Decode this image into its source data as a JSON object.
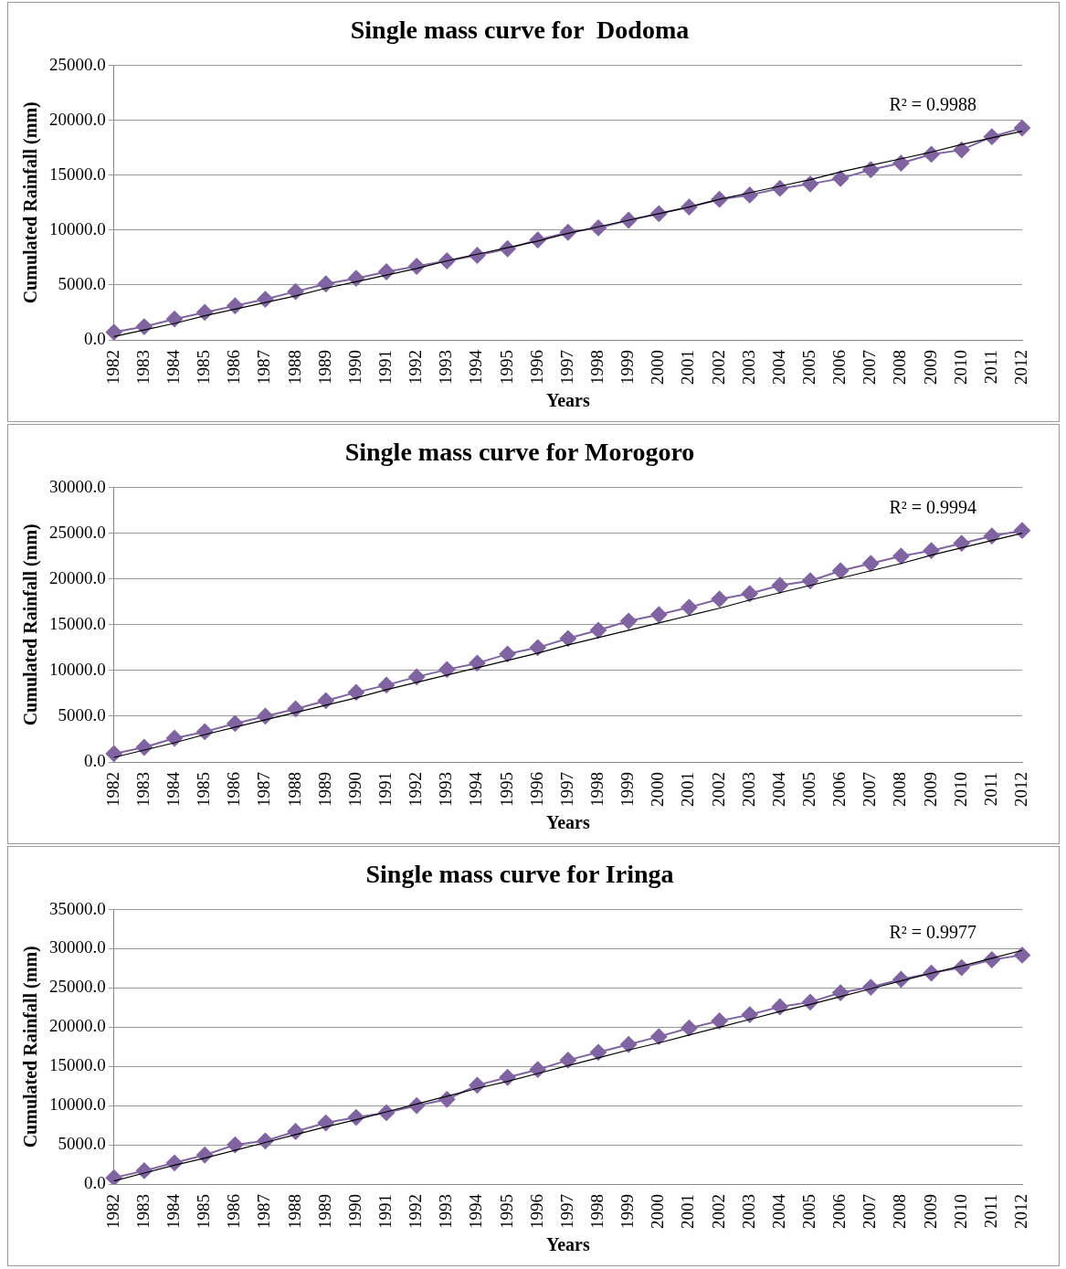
{
  "chart_data": [
    {
      "type": "line",
      "title": "Single mass curve for  Dodoma",
      "xlabel": "Years",
      "ylabel": "Cumulated Rainfall (mm)",
      "categories": [
        "1982",
        "1983",
        "1984",
        "1985",
        "1986",
        "1987",
        "1988",
        "1989",
        "1990",
        "1991",
        "1992",
        "1993",
        "1994",
        "1995",
        "1996",
        "1997",
        "1998",
        "1999",
        "2000",
        "2001",
        "2002",
        "2003",
        "2004",
        "2005",
        "2006",
        "2007",
        "2008",
        "2009",
        "2010",
        "2011",
        "2012"
      ],
      "series": [
        {
          "type": "line",
          "color": "#8064a2",
          "marker": "diamond",
          "values": [
            700,
            1200,
            1900,
            2500,
            3100,
            3700,
            4400,
            5100,
            5600,
            6200,
            6700,
            7200,
            7700,
            8300,
            9100,
            9800,
            10200,
            10900,
            11500,
            12100,
            12800,
            13200,
            13800,
            14200,
            14700,
            15500,
            16100,
            16900,
            17300,
            18500,
            19300
          ]
        },
        {
          "type": "line",
          "color": "#000000",
          "marker": "none",
          "values": [
            300,
            900,
            1500,
            2200,
            2800,
            3400,
            4000,
            4700,
            5300,
            5900,
            6500,
            7200,
            7800,
            8400,
            9000,
            9700,
            10300,
            10900,
            11500,
            12100,
            12800,
            13400,
            14000,
            14600,
            15300,
            15900,
            16500,
            17100,
            17800,
            18400,
            19000
          ]
        }
      ],
      "ylim": [
        0,
        25000
      ],
      "yticks": [
        {
          "value": 0,
          "label": "0.0"
        },
        {
          "value": 5000,
          "label": "5000.0"
        },
        {
          "value": 10000,
          "label": "10000.0"
        },
        {
          "value": 15000,
          "label": "15000.0"
        },
        {
          "value": 20000,
          "label": "20000.0"
        },
        {
          "value": 25000,
          "label": "25000.0"
        }
      ],
      "grid": "y",
      "legend": false,
      "annotations": [
        "R² = 0.9988"
      ]
    },
    {
      "type": "line",
      "title": "Single mass curve for Morogoro",
      "xlabel": "Years",
      "ylabel": "Cumulated Rainfall (mm)",
      "categories": [
        "1982",
        "1983",
        "1984",
        "1985",
        "1986",
        "1987",
        "1988",
        "1989",
        "1990",
        "1991",
        "1992",
        "1993",
        "1994",
        "1995",
        "1996",
        "1997",
        "1998",
        "1999",
        "2000",
        "2001",
        "2002",
        "2003",
        "2004",
        "2005",
        "2006",
        "2007",
        "2008",
        "2009",
        "2010",
        "2011",
        "2012"
      ],
      "series": [
        {
          "type": "line",
          "color": "#8064a2",
          "marker": "diamond",
          "values": [
            900,
            1600,
            2600,
            3300,
            4200,
            5000,
            5800,
            6700,
            7600,
            8400,
            9300,
            10100,
            10800,
            11800,
            12500,
            13500,
            14400,
            15400,
            16100,
            16900,
            17800,
            18400,
            19300,
            19800,
            20900,
            21700,
            22500,
            23100,
            23900,
            24700,
            25300
          ]
        },
        {
          "type": "line",
          "color": "#000000",
          "marker": "none",
          "values": [
            500,
            1300,
            2100,
            3000,
            3800,
            4600,
            5400,
            6200,
            7000,
            7900,
            8700,
            9500,
            10300,
            11100,
            11900,
            12800,
            13600,
            14400,
            15200,
            16000,
            16800,
            17700,
            18500,
            19300,
            20100,
            20900,
            21700,
            22600,
            23400,
            24200,
            25000
          ]
        }
      ],
      "ylim": [
        0,
        30000
      ],
      "yticks": [
        {
          "value": 0,
          "label": "0.0"
        },
        {
          "value": 5000,
          "label": "5000.0"
        },
        {
          "value": 10000,
          "label": "10000.0"
        },
        {
          "value": 15000,
          "label": "15000.0"
        },
        {
          "value": 20000,
          "label": "20000.0"
        },
        {
          "value": 25000,
          "label": "25000.0"
        },
        {
          "value": 30000,
          "label": "30000.0"
        }
      ],
      "grid": "y",
      "legend": false,
      "annotations": [
        "R² = 0.9994"
      ]
    },
    {
      "type": "line",
      "title": "Single mass curve for Iringa",
      "xlabel": "Years",
      "ylabel": "Cumulated Rainfall (mm)",
      "categories": [
        "1982",
        "1983",
        "1984",
        "1985",
        "1986",
        "1987",
        "1988",
        "1989",
        "1990",
        "1991",
        "1992",
        "1993",
        "1994",
        "1995",
        "1996",
        "1997",
        "1998",
        "1999",
        "2000",
        "2001",
        "2002",
        "2003",
        "2004",
        "2005",
        "2006",
        "2007",
        "2008",
        "2009",
        "2010",
        "2011",
        "2012"
      ],
      "series": [
        {
          "type": "line",
          "color": "#8064a2",
          "marker": "diamond",
          "values": [
            800,
            1700,
            2700,
            3700,
            5000,
            5500,
            6700,
            7800,
            8500,
            9100,
            10000,
            10800,
            12600,
            13600,
            14600,
            15800,
            16800,
            17800,
            18800,
            19900,
            20800,
            21600,
            22600,
            23200,
            24400,
            25100,
            26100,
            26900,
            27600,
            28600,
            29200
          ]
        },
        {
          "type": "line",
          "color": "#000000",
          "marker": "none",
          "values": [
            400,
            1400,
            2400,
            3300,
            4300,
            5300,
            6300,
            7300,
            8200,
            9200,
            10200,
            11200,
            12200,
            13100,
            14100,
            15100,
            16100,
            17100,
            18000,
            19000,
            20000,
            21000,
            22000,
            22900,
            23900,
            24900,
            25900,
            26900,
            27800,
            28800,
            29800
          ]
        }
      ],
      "ylim": [
        0,
        35000
      ],
      "yticks": [
        {
          "value": 0,
          "label": "0.0"
        },
        {
          "value": 5000,
          "label": "5000.0"
        },
        {
          "value": 10000,
          "label": "10000.0"
        },
        {
          "value": 15000,
          "label": "15000.0"
        },
        {
          "value": 20000,
          "label": "20000.0"
        },
        {
          "value": 25000,
          "label": "25000.0"
        },
        {
          "value": 30000,
          "label": "30000.0"
        },
        {
          "value": 35000,
          "label": "35000.0"
        }
      ],
      "grid": "y",
      "legend": false,
      "annotations": [
        "R² = 0.9977"
      ]
    }
  ]
}
